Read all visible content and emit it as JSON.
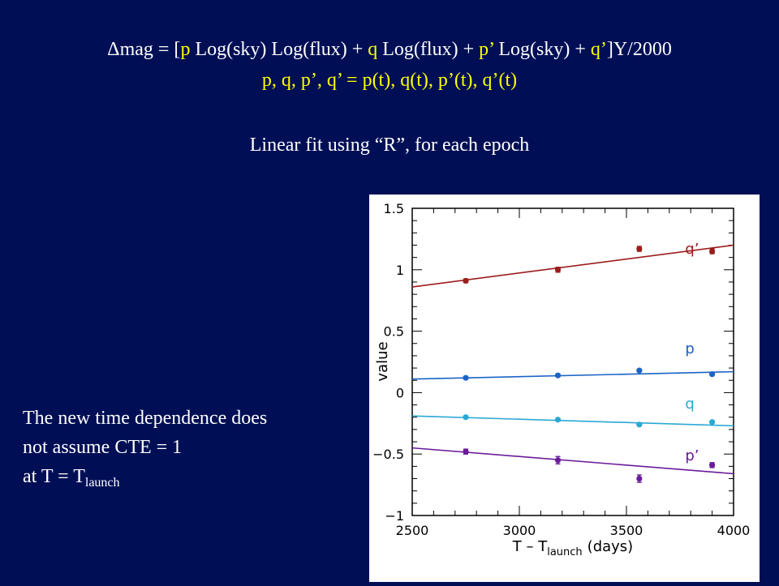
{
  "equation": {
    "delta": "Δ",
    "l1_a": "mag = [",
    "p": "p",
    "l1_b": " Log(sky)  Log(flux)  +  ",
    "q": "q",
    "l1_c": " Log(flux)  +  ",
    "pp": "p’",
    "l1_d": " Log(sky)  +  ",
    "qq": "q’",
    "l1_e": "]Y/2000",
    "line2": "p, q, p’, q’ = p(t), q(t), p’(t), q’(t)"
  },
  "fit_note": "Linear fit using “R”, for each epoch",
  "note": {
    "line1": "The new time dependence does",
    "line2": "not assume  CTE = 1",
    "line3_a": "at  T = T",
    "line3_sub": "launch"
  },
  "chart_data": {
    "type": "scatter",
    "xlabel_main": "T – T",
    "xlabel_sub": "launch",
    "xlabel_units": "(days)",
    "ylabel": "value",
    "xlim": [
      2500,
      4000
    ],
    "ylim": [
      -1,
      1.5
    ],
    "xticks": [
      2500,
      3000,
      3500,
      4000
    ],
    "yticks": [
      {
        "value": -1,
        "label": "−1"
      },
      {
        "value": -0.5,
        "label": "−0.5"
      },
      {
        "value": 0,
        "label": "0"
      },
      {
        "value": 0.5,
        "label": "0.5"
      },
      {
        "value": 1,
        "label": "1"
      },
      {
        "value": 1.5,
        "label": "1.5"
      }
    ],
    "grid": false,
    "series": [
      {
        "name": "q’",
        "color": "#9b1c1c",
        "x": [
          2750,
          3180,
          3560,
          3900
        ],
        "y": [
          0.91,
          1.0,
          1.17,
          1.15
        ],
        "yerr": [
          0.015,
          0.02,
          0.02,
          0.02
        ],
        "fit": [
          [
            2500,
            0.86
          ],
          [
            4000,
            1.2
          ]
        ],
        "label_at": [
          3880,
          1.13
        ]
      },
      {
        "name": "p",
        "color": "#1c63c6",
        "x": [
          2750,
          3180,
          3560,
          3900
        ],
        "y": [
          0.12,
          0.14,
          0.18,
          0.15
        ],
        "yerr": [
          0.01,
          0.01,
          0.01,
          0.01
        ],
        "fit": [
          [
            2500,
            0.11
          ],
          [
            4000,
            0.17
          ]
        ],
        "label_at": [
          3880,
          0.32
        ]
      },
      {
        "name": "q",
        "color": "#2aa8d4",
        "x": [
          2750,
          3180,
          3560,
          3900
        ],
        "y": [
          -0.2,
          -0.22,
          -0.26,
          -0.24
        ],
        "yerr": [
          0.01,
          0.01,
          0.01,
          0.01
        ],
        "fit": [
          [
            2500,
            -0.19
          ],
          [
            4000,
            -0.27
          ]
        ],
        "label_at": [
          3880,
          -0.13
        ]
      },
      {
        "name": "p’",
        "color": "#6a1b9a",
        "x": [
          2750,
          3180,
          3560,
          3900
        ],
        "y": [
          -0.48,
          -0.55,
          -0.7,
          -0.59
        ],
        "yerr": [
          0.02,
          0.03,
          0.03,
          0.02
        ],
        "fit": [
          [
            2500,
            -0.45
          ],
          [
            4000,
            -0.66
          ]
        ],
        "label_at": [
          3880,
          -0.55
        ]
      }
    ]
  }
}
